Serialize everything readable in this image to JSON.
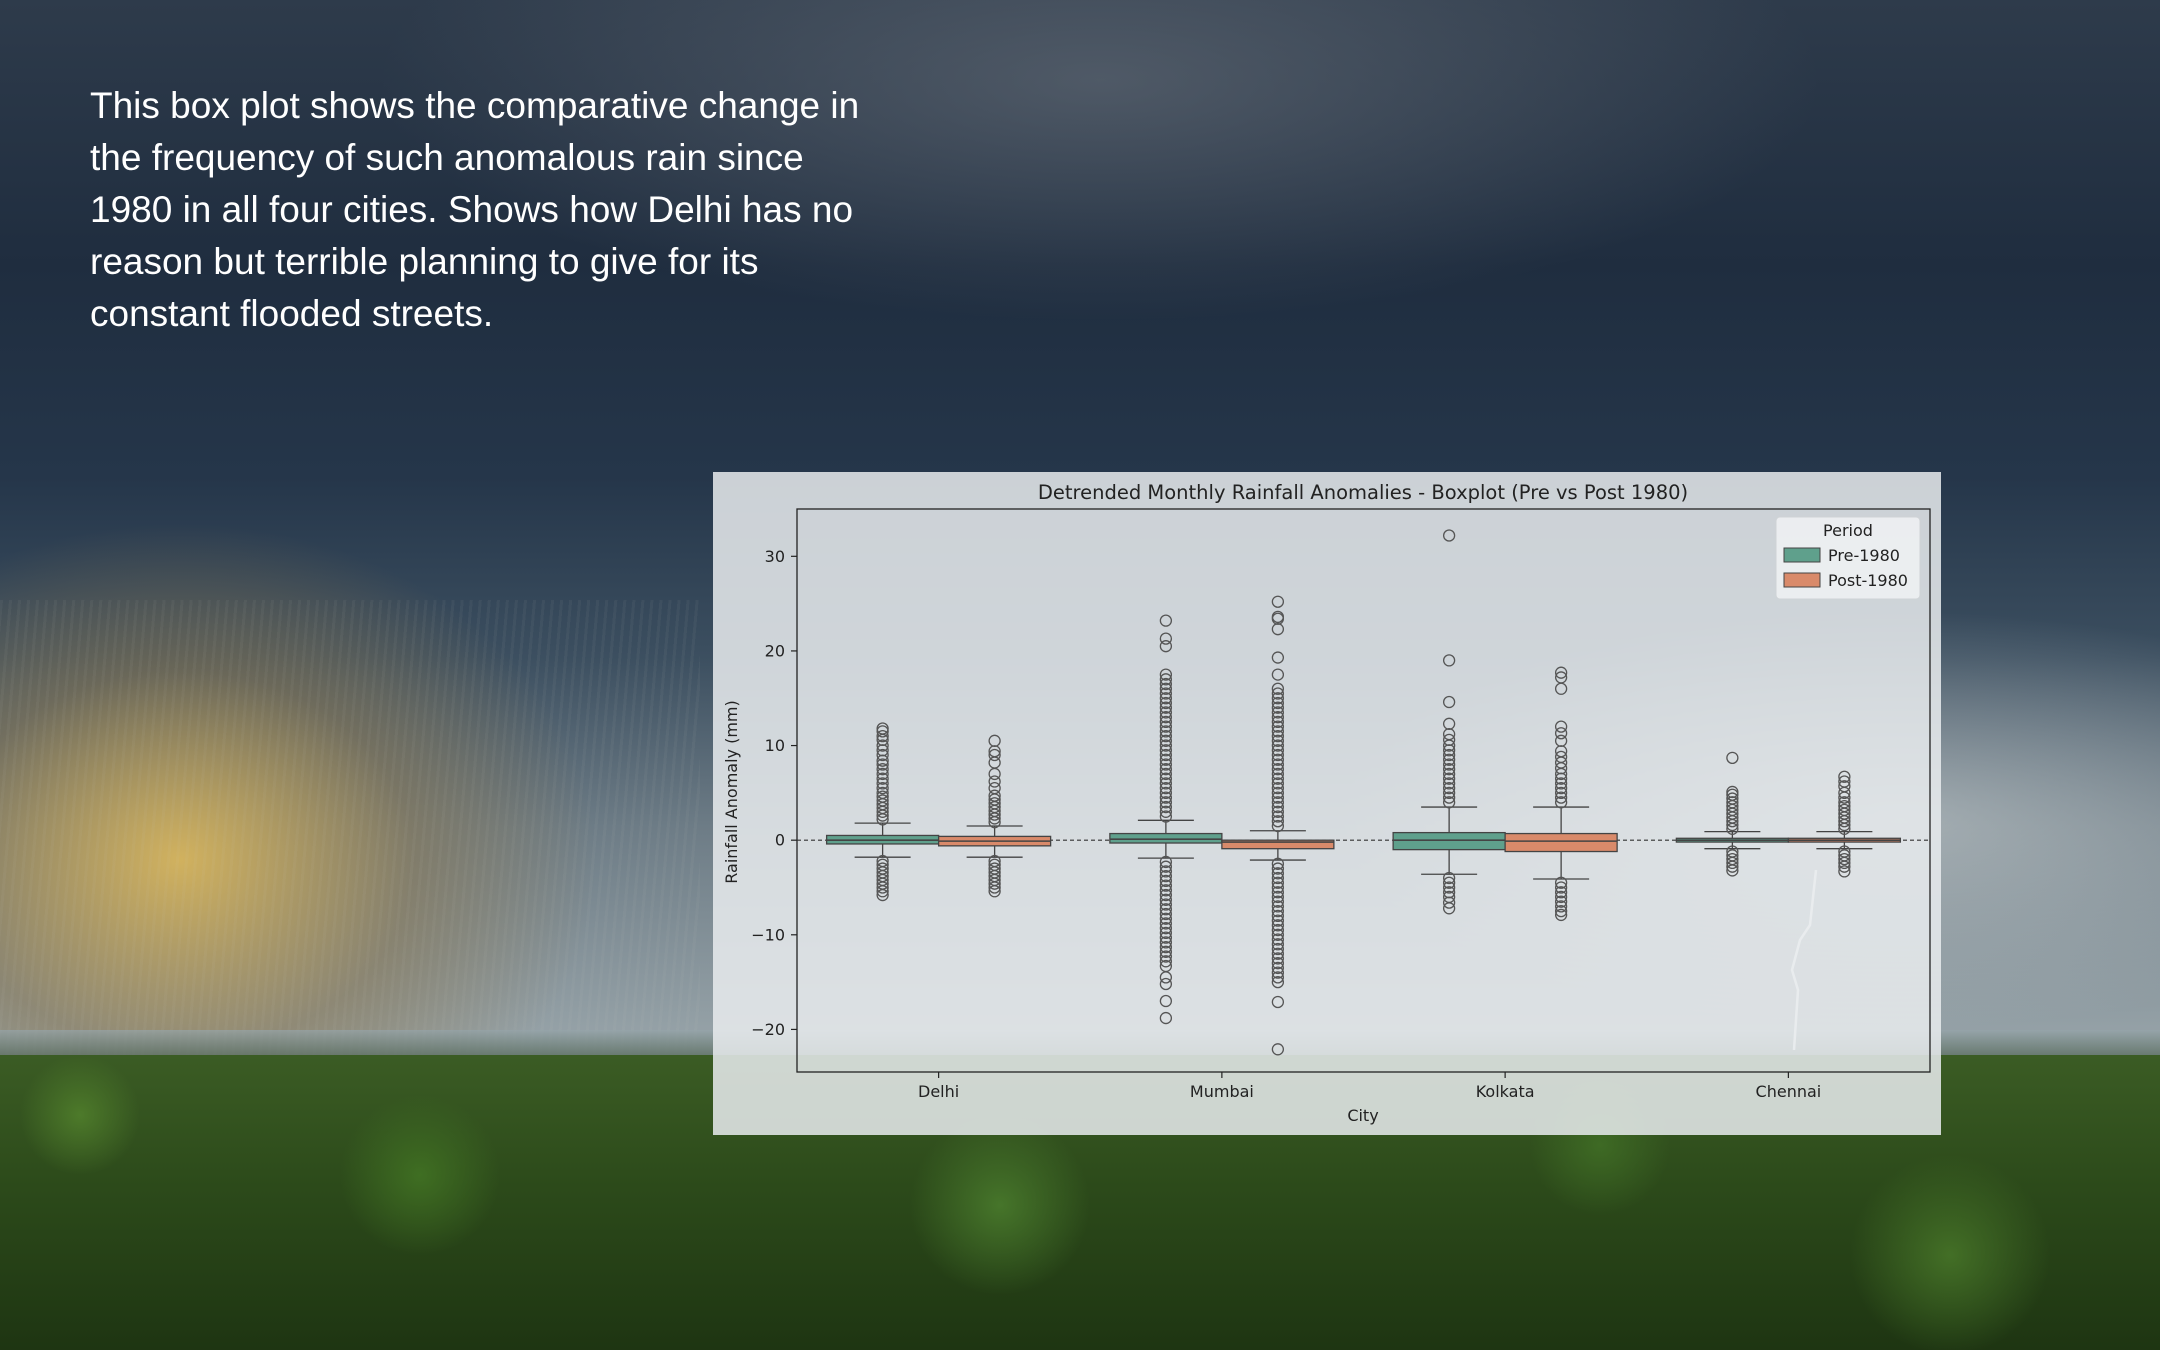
{
  "caption": {
    "lines": [
      "This box plot shows the comparative change in",
      "the frequency of such anomalous rain since",
      "1980 in all four cities. Shows how Delhi has no",
      "reason but terrible planning to give for its",
      "constant flooded streets."
    ]
  },
  "chart_data": {
    "type": "box",
    "title": "Detrended Monthly Rainfall Anomalies - Boxplot (Pre vs Post 1980)",
    "xlabel": "City",
    "ylabel": "Rainfall Anomaly (mm)",
    "categories": [
      "Delhi",
      "Mumbai",
      "Kolkata",
      "Chennai"
    ],
    "ylim": [
      -24.5,
      35
    ],
    "yticks": [
      30,
      20,
      10,
      0,
      -10,
      -20
    ],
    "ytick_labels": [
      "30",
      "20",
      "10",
      "0",
      "−10",
      "−20"
    ],
    "reference_line_y": 0,
    "grid": false,
    "legend": {
      "title": "Period",
      "placement": "top-right"
    },
    "series": [
      {
        "name": "Pre-1980",
        "color": "#5fa08c",
        "boxes": [
          {
            "city": "Delhi",
            "whisker_low": -1.8,
            "q1": -0.4,
            "median": 0.0,
            "q3": 0.5,
            "whisker_high": 1.8,
            "outliers": [
              2.2,
              2.6,
              3.0,
              3.4,
              3.8,
              4.2,
              4.6,
              5.0,
              5.5,
              6.0,
              6.5,
              7.0,
              7.5,
              8.0,
              8.4,
              9.0,
              9.5,
              10.0,
              10.6,
              11.0,
              11.5,
              11.8,
              -2.2,
              -2.6,
              -3.0,
              -3.4,
              -3.8,
              -4.2,
              -4.6,
              -5.0,
              -5.4,
              -5.8
            ]
          },
          {
            "city": "Mumbai",
            "whisker_low": -1.9,
            "q1": -0.3,
            "median": 0.1,
            "q3": 0.7,
            "whisker_high": 2.1,
            "outliers": [
              2.5,
              3,
              3.5,
              4,
              4.5,
              5,
              5.5,
              6,
              6.5,
              7,
              7.5,
              8,
              8.5,
              9,
              9.5,
              10,
              10.5,
              11,
              11.5,
              12,
              12.5,
              13,
              13.5,
              14,
              14.5,
              15,
              15.5,
              16,
              16.5,
              17,
              17.5,
              20.5,
              21.3,
              23.2,
              -2.3,
              -2.8,
              -3.3,
              -3.8,
              -4.3,
              -4.8,
              -5.3,
              -5.8,
              -6.3,
              -6.8,
              -7.3,
              -7.8,
              -8.3,
              -8.8,
              -9.3,
              -9.8,
              -10.3,
              -10.8,
              -11.3,
              -11.8,
              -12.3,
              -12.8,
              -13.3,
              -14.5,
              -15.2,
              -17.0,
              -18.8
            ]
          },
          {
            "city": "Kolkata",
            "whisker_low": -3.6,
            "q1": -1.0,
            "median": 0.0,
            "q3": 0.8,
            "whisker_high": 3.5,
            "outliers": [
              4,
              4.5,
              5,
              5.5,
              6,
              6.5,
              7,
              7.5,
              8,
              8.5,
              9,
              9.5,
              10,
              10.6,
              11.2,
              12.3,
              14.6,
              19.0,
              32.2,
              -4,
              -4.5,
              -5,
              -5.5,
              -6,
              -6.6,
              -7.2
            ]
          },
          {
            "city": "Chennai",
            "whisker_low": -0.9,
            "q1": -0.2,
            "median": 0.0,
            "q3": 0.2,
            "whisker_high": 0.9,
            "outliers": [
              1.2,
              1.6,
              2.0,
              2.4,
              2.8,
              3.2,
              3.6,
              4.0,
              4.4,
              4.8,
              5.1,
              8.7,
              -1.2,
              -1.6,
              -2.0,
              -2.4,
              -2.8,
              -3.2
            ]
          }
        ]
      },
      {
        "name": "Post-1980",
        "color": "#d98a6a",
        "boxes": [
          {
            "city": "Delhi",
            "whisker_low": -1.8,
            "q1": -0.6,
            "median": -0.1,
            "q3": 0.4,
            "whisker_high": 1.5,
            "outliers": [
              1.9,
              2.3,
              2.7,
              3.1,
              3.5,
              3.9,
              4.3,
              4.7,
              5.5,
              6.2,
              7.0,
              8.2,
              9.0,
              9.4,
              10.5,
              -2.2,
              -2.6,
              -3.0,
              -3.4,
              -3.8,
              -4.2,
              -4.6,
              -5.0,
              -5.4
            ]
          },
          {
            "city": "Mumbai",
            "whisker_low": -2.1,
            "q1": -0.9,
            "median": -0.2,
            "q3": 0.0,
            "whisker_high": 1.0,
            "outliers": [
              1.5,
              2,
              2.5,
              3,
              3.5,
              4,
              4.5,
              5,
              5.5,
              6,
              6.5,
              7,
              7.5,
              8,
              8.5,
              9,
              9.5,
              10,
              10.5,
              11,
              11.5,
              12,
              12.5,
              13,
              13.5,
              14,
              14.5,
              15,
              15.5,
              16,
              17.5,
              19.3,
              22.3,
              23.4,
              23.6,
              25.2,
              -2.5,
              -3,
              -3.5,
              -4,
              -4.5,
              -5,
              -5.5,
              -6,
              -6.5,
              -7,
              -7.5,
              -8,
              -8.5,
              -9,
              -9.5,
              -10,
              -10.5,
              -11,
              -11.5,
              -12,
              -12.5,
              -13,
              -13.5,
              -14,
              -14.5,
              -15,
              -17.1,
              -22.1
            ]
          },
          {
            "city": "Kolkata",
            "whisker_low": -4.1,
            "q1": -1.2,
            "median": -0.1,
            "q3": 0.7,
            "whisker_high": 3.5,
            "outliers": [
              4,
              4.5,
              5,
              5.5,
              6,
              6.5,
              7,
              7.6,
              8.2,
              8.8,
              9.4,
              10.5,
              11.3,
              12.0,
              16.0,
              17.2,
              17.7,
              -4.5,
              -5,
              -5.5,
              -6,
              -6.5,
              -7,
              -7.5,
              -7.9
            ]
          },
          {
            "city": "Chennai",
            "whisker_low": -0.9,
            "q1": -0.2,
            "median": 0.0,
            "q3": 0.2,
            "whisker_high": 0.9,
            "outliers": [
              1.2,
              1.6,
              2.0,
              2.4,
              2.8,
              3.2,
              3.6,
              4.0,
              4.5,
              5.0,
              5.7,
              6.2,
              6.7,
              -1.2,
              -1.6,
              -2.0,
              -2.4,
              -2.8,
              -3.3
            ]
          }
        ]
      }
    ]
  }
}
